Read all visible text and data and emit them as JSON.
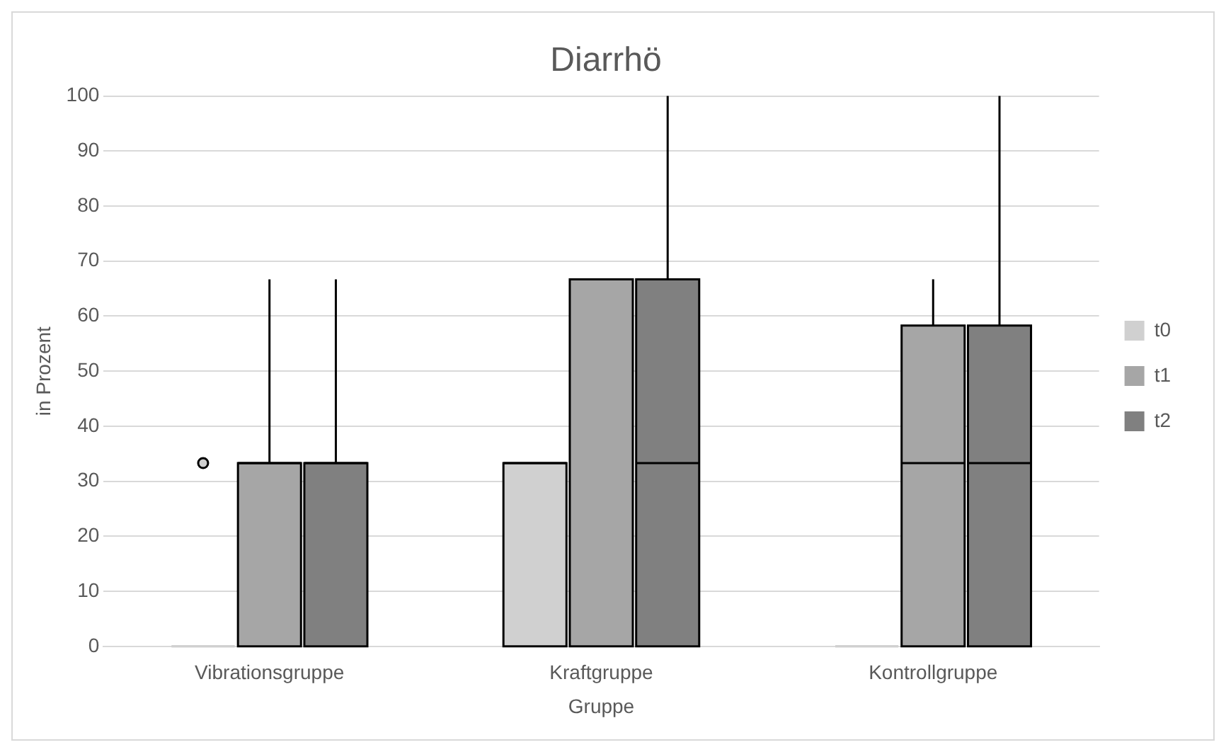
{
  "chart_data": {
    "type": "box",
    "title": "Diarrhö",
    "xlabel": "Gruppe",
    "ylabel": "in Prozent",
    "categories": [
      "Vibrationsgruppe",
      "Kraftgruppe",
      "Kontrollgruppe"
    ],
    "series": [
      {
        "name": "t0",
        "color": "#d0d0d0",
        "boxes": [
          {
            "low": 0,
            "q1": 0,
            "median": 0,
            "q3": 0,
            "high": 0,
            "outliers": [
              33.3
            ]
          },
          {
            "low": 0,
            "q1": 0,
            "median": 33.3,
            "q3": 33.3,
            "high": 33.3
          },
          {
            "low": 0,
            "q1": 0,
            "median": 0,
            "q3": 0,
            "high": 0
          }
        ]
      },
      {
        "name": "t1",
        "color": "#a6a6a6",
        "boxes": [
          {
            "low": 0,
            "q1": 0,
            "median": 33.3,
            "q3": 33.3,
            "high": 66.7
          },
          {
            "low": 0,
            "q1": 0,
            "median": 66.7,
            "q3": 66.7,
            "high": 66.7
          },
          {
            "low": 0,
            "q1": 0,
            "median": 33.3,
            "q3": 58.3,
            "high": 66.7
          }
        ]
      },
      {
        "name": "t2",
        "color": "#808080",
        "boxes": [
          {
            "low": 0,
            "q1": 0,
            "median": 33.3,
            "q3": 33.3,
            "high": 66.7
          },
          {
            "low": 0,
            "q1": 0,
            "median": 33.3,
            "q3": 66.7,
            "high": 100
          },
          {
            "low": 0,
            "q1": 0,
            "median": 33.3,
            "q3": 58.3,
            "high": 100
          }
        ]
      }
    ],
    "ylim": [
      0,
      100
    ],
    "yticks": [
      0,
      10,
      20,
      30,
      40,
      50,
      60,
      70,
      80,
      90,
      100
    ],
    "grid": "y",
    "legend": "right"
  }
}
